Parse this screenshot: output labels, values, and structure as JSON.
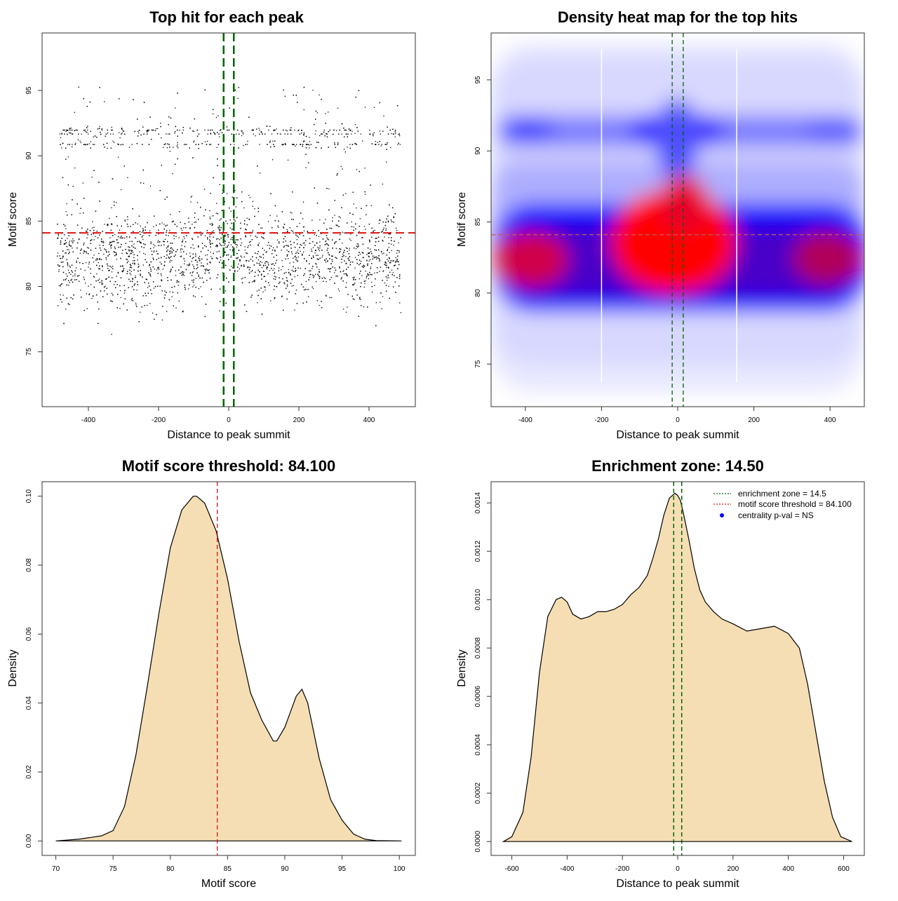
{
  "colors": {
    "point": "#000000",
    "threshold": "#dd1111",
    "zone": "#006400",
    "fill": "#f5deb3",
    "heat_low": "#0000ff",
    "heat_high": "#ff0000",
    "legend_dot": "#0000ff"
  },
  "chart_data": [
    {
      "id": "scatter",
      "type": "scatter",
      "title": "Top hit for each peak",
      "xlabel": "Distance to peak summit",
      "ylabel": "Motif score",
      "xlim": [
        -532,
        532
      ],
      "ylim": [
        70.8,
        99.4
      ],
      "xticks": [
        -400,
        -200,
        0,
        200,
        400
      ],
      "yticks": [
        75,
        80,
        85,
        90,
        95
      ],
      "hline": 84.1,
      "vlines": [
        -14.5,
        14.5
      ],
      "points_note": "approx. 5000 top hits, distance -490..490, score ~73..97; main band 78-88, secondary band ~91.8"
    },
    {
      "id": "heatmap",
      "type": "heatmap",
      "title": "Density heat map for the top hits",
      "xlabel": "Distance to peak summit",
      "ylabel": "Motif score",
      "xlim": [
        -490,
        490
      ],
      "ylim": [
        72,
        98.3
      ],
      "xticks": [
        -400,
        -200,
        0,
        200,
        400
      ],
      "yticks": [
        75,
        80,
        85,
        90,
        95
      ],
      "hline": 84.1,
      "vlines": [
        -14.5,
        14.5
      ],
      "gap_lines": [
        -200,
        155
      ],
      "hotspots": [
        {
          "x": -400,
          "y": 82.3,
          "level": "high"
        },
        {
          "x": -20,
          "y": 84.5,
          "level": "high"
        },
        {
          "x": 30,
          "y": 82.5,
          "level": "high"
        },
        {
          "x": 400,
          "y": 82.3,
          "level": "medium"
        },
        {
          "x": 0,
          "y": 91.4,
          "level": "medium"
        }
      ]
    },
    {
      "id": "score_density",
      "type": "area",
      "title": "Motif score threshold: 84.100",
      "xlabel": "Motif score",
      "ylabel": "Density",
      "xlim": [
        68.8,
        101.4
      ],
      "ylim": [
        -0.0042,
        0.1042
      ],
      "xticks": [
        70,
        75,
        80,
        85,
        90,
        95,
        100
      ],
      "yticks": [
        0.0,
        0.02,
        0.04,
        0.06,
        0.08,
        0.1
      ],
      "ytick_labels": [
        "0.00",
        "0.02",
        "0.04",
        "0.06",
        "0.08",
        "0.10"
      ],
      "vline": 84.1,
      "x": [
        70,
        72,
        74,
        75,
        76,
        77,
        78,
        79,
        80,
        81,
        82,
        82.3,
        83,
        84,
        85,
        86,
        87,
        88,
        89,
        89.3,
        90,
        91,
        91.5,
        92,
        93,
        94,
        95,
        96,
        97,
        98,
        100.2
      ],
      "y": [
        0.0,
        0.0005,
        0.0015,
        0.003,
        0.01,
        0.025,
        0.045,
        0.066,
        0.085,
        0.096,
        0.1,
        0.1,
        0.098,
        0.09,
        0.076,
        0.058,
        0.043,
        0.035,
        0.029,
        0.029,
        0.033,
        0.042,
        0.044,
        0.04,
        0.024,
        0.012,
        0.006,
        0.002,
        0.0005,
        0.0001,
        0.0
      ]
    },
    {
      "id": "distance_density",
      "type": "area",
      "title": "Enrichment zone: 14.50",
      "xlabel": "Distance to peak summit",
      "ylabel": "Density",
      "xlim": [
        -675,
        675
      ],
      "ylim": [
        -5.75e-05,
        0.0014875
      ],
      "xticks": [
        -600,
        -400,
        -200,
        0,
        200,
        400,
        600
      ],
      "yticks": [
        0.0,
        0.0002,
        0.0004,
        0.0006,
        0.0008,
        0.001,
        0.0012,
        0.0014
      ],
      "ytick_labels": [
        "0.0000",
        "0.0002",
        "0.0004",
        "0.0006",
        "0.0008",
        "0.0010",
        "0.0012",
        "0.0014"
      ],
      "vlines": [
        -14.5,
        14.5
      ],
      "x": [
        -630,
        -600,
        -560,
        -530,
        -500,
        -470,
        -440,
        -420,
        -400,
        -380,
        -350,
        -320,
        -290,
        -260,
        -230,
        -200,
        -170,
        -140,
        -110,
        -90,
        -70,
        -50,
        -30,
        -10,
        0,
        10,
        20,
        40,
        60,
        80,
        100,
        130,
        160,
        200,
        250,
        300,
        350,
        400,
        440,
        470,
        500,
        530,
        560,
        590,
        630
      ],
      "y": [
        0.0,
        2e-05,
        0.00012,
        0.00035,
        0.0007,
        0.00093,
        0.001,
        0.00101,
        0.00099,
        0.00094,
        0.00092,
        0.00093,
        0.00095,
        0.00095,
        0.00096,
        0.00098,
        0.00102,
        0.00105,
        0.0011,
        0.00117,
        0.00125,
        0.00135,
        0.00142,
        0.00144,
        0.00143,
        0.00141,
        0.00136,
        0.00125,
        0.00113,
        0.00104,
        0.00099,
        0.00095,
        0.00092,
        0.0009,
        0.00087,
        0.00088,
        0.00089,
        0.00086,
        0.0008,
        0.00065,
        0.00045,
        0.00025,
        0.0001,
        2e-05,
        0.0
      ]
    }
  ],
  "legend": {
    "zone_label": "enrichment zone = 14.5",
    "threshold_label": "motif score threshold = 84.100",
    "pval_label": "centrality p-val = NS"
  }
}
